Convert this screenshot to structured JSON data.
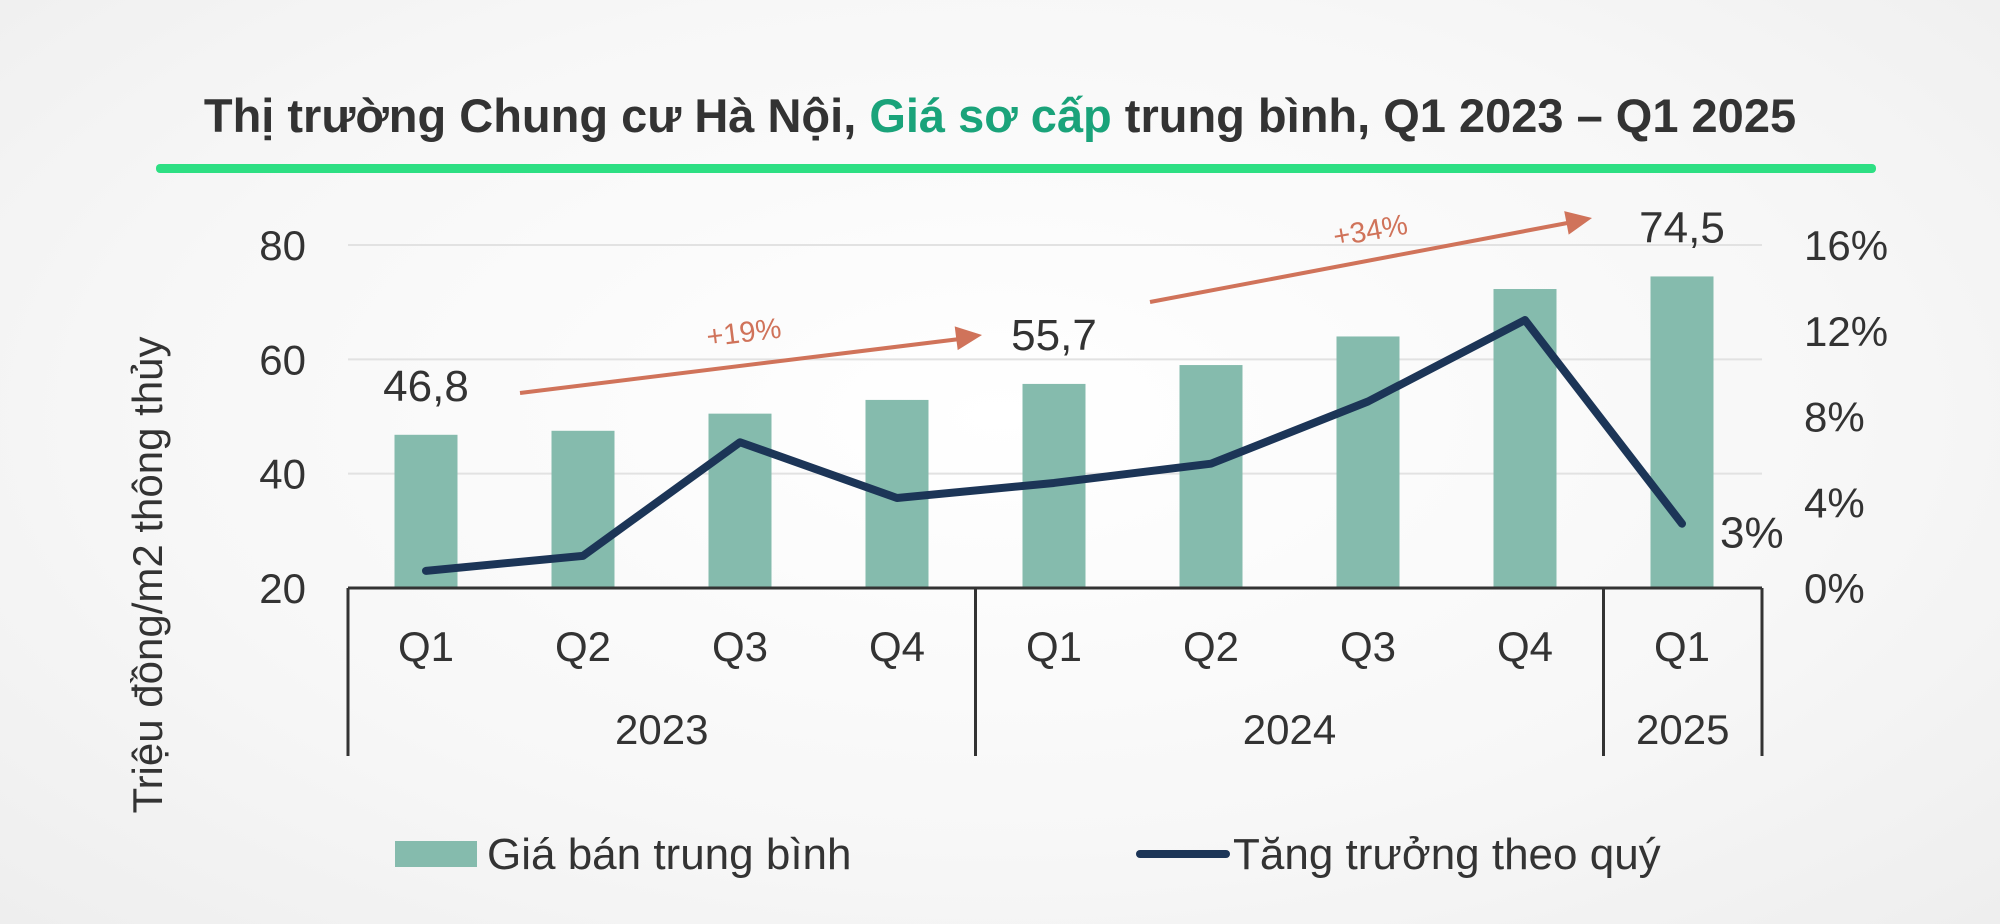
{
  "chart_data": {
    "type": "bar",
    "title": {
      "part1": "Thị trường Chung cư Hà Nội, ",
      "part2": "Giá sơ cấp",
      "part3": " trung bình, Q1 2023 – Q1 2025"
    },
    "ylabel": "Triệu đồng/m2 thông thủy",
    "categories": [
      "Q1",
      "Q2",
      "Q3",
      "Q4",
      "Q1",
      "Q2",
      "Q3",
      "Q4",
      "Q1"
    ],
    "groups": [
      {
        "label": "2023",
        "count": 4
      },
      {
        "label": "2024",
        "count": 4
      },
      {
        "label": "2025",
        "count": 1
      }
    ],
    "series": [
      {
        "name": "Giá bán trung bình",
        "type": "bar",
        "axis": "left",
        "color": "#85bbad",
        "values": [
          46.8,
          47.5,
          50.5,
          52.9,
          55.7,
          59.0,
          64.0,
          72.3,
          74.5
        ]
      },
      {
        "name": "Tăng trưởng theo quý",
        "type": "line",
        "axis": "right",
        "color": "#1c3557",
        "values": [
          0.8,
          1.5,
          6.8,
          4.2,
          4.9,
          5.8,
          8.7,
          12.5,
          3.0
        ]
      }
    ],
    "y_left": {
      "ylim": [
        20,
        80
      ],
      "ticks": [
        "20",
        "40",
        "60",
        "80"
      ]
    },
    "y_right": {
      "ylim": [
        0,
        16
      ],
      "ticks": [
        "0%",
        "4%",
        "8%",
        "12%",
        "16%"
      ]
    },
    "data_labels": [
      {
        "index": 0,
        "text": "46,8"
      },
      {
        "index": 4,
        "text": "55,7"
      },
      {
        "index": 8,
        "text": "74,5"
      }
    ],
    "line_label": {
      "index": 8,
      "text": "3%"
    },
    "annotations": [
      {
        "text": "+19%",
        "from_index": 0,
        "to_index": 4
      },
      {
        "text": "+34%",
        "from_index": 4,
        "to_index": 8
      }
    ],
    "legend_position": "bottom",
    "grid": true,
    "colors": {
      "accent_green": "#1aa37a",
      "rule_green": "#2ddf83",
      "arrow": "#d0735a",
      "title": "#333333"
    }
  }
}
